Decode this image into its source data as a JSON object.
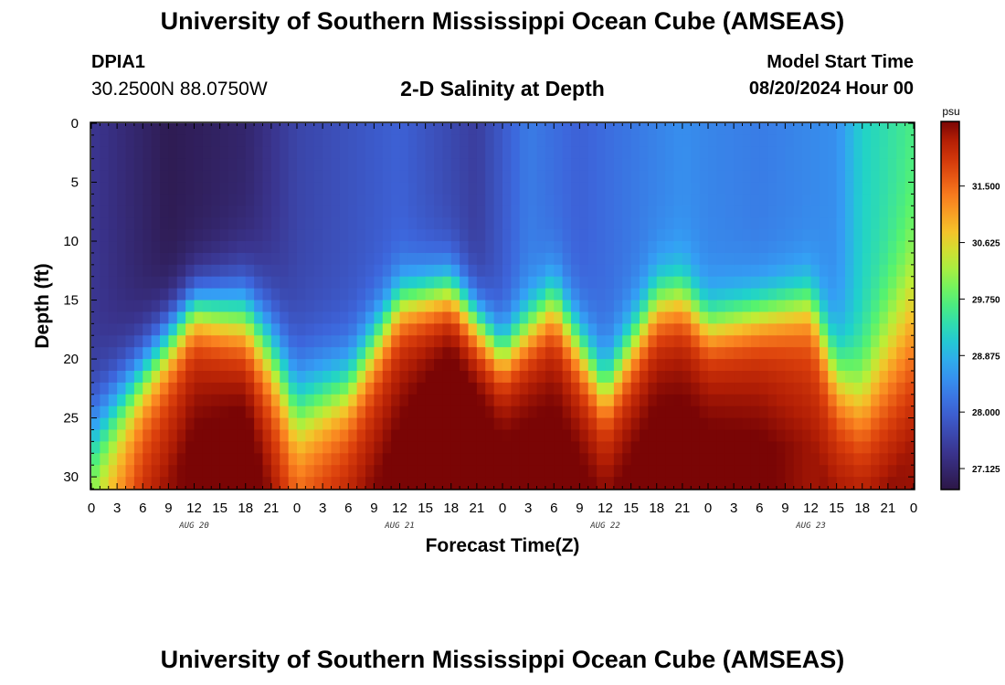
{
  "header": {
    "title": "University of Southern Mississippi Ocean Cube (AMSEAS)",
    "station_id": "DPIA1",
    "station_coords": "30.2500N  88.0750W",
    "subtitle": "2-D Salinity at Depth",
    "model_start_label": "Model Start Time",
    "model_start_value": "08/20/2024 Hour 00"
  },
  "footer": {
    "title": "University of Southern Mississippi Ocean Cube (AMSEAS)"
  },
  "chart_data": {
    "type": "heatmap",
    "title": "2-D Salinity at Depth",
    "xlabel": "Forecast Time(Z)",
    "ylabel": "Depth (ft)",
    "x_tick_labels": [
      "0",
      "3",
      "6",
      "9",
      "12",
      "15",
      "18",
      "21",
      "0",
      "3",
      "6",
      "9",
      "12",
      "15",
      "18",
      "21",
      "0",
      "3",
      "6",
      "9",
      "12",
      "15",
      "18",
      "21",
      "0",
      "3",
      "6",
      "9",
      "12",
      "15",
      "18",
      "21",
      "0"
    ],
    "date_labels": [
      {
        "label": "AUG 20",
        "hour": 12
      },
      {
        "label": "AUG 21",
        "hour": 36
      },
      {
        "label": "AUG 22",
        "hour": 60
      },
      {
        "label": "AUG 23",
        "hour": 84
      }
    ],
    "xlim_hours": [
      0,
      96
    ],
    "ylim_ft": [
      0,
      31
    ],
    "y_ticks": [
      0,
      5,
      10,
      15,
      20,
      25,
      30
    ],
    "y_tick_labels": [
      "0",
      "5",
      "10",
      "15",
      "20",
      "25",
      "30"
    ],
    "colorbar": {
      "unit": "psu",
      "min": 26.8,
      "max": 32.5,
      "ticks": [
        27.125,
        28.0,
        28.875,
        29.75,
        30.625,
        31.5
      ],
      "tick_labels": [
        "27.125",
        "28.000",
        "28.875",
        "29.750",
        "30.625",
        "31.500"
      ]
    },
    "surface_salinity_by_hour": [
      [
        0,
        27.4
      ],
      [
        9,
        26.9
      ],
      [
        18,
        27.1
      ],
      [
        24,
        27.6
      ],
      [
        36,
        28.0
      ],
      [
        45,
        27.5
      ],
      [
        51,
        28.3
      ],
      [
        57,
        28.0
      ],
      [
        69,
        28.5
      ],
      [
        72,
        28.4
      ],
      [
        78,
        28.3
      ],
      [
        87,
        28.5
      ],
      [
        90,
        29.2
      ],
      [
        96,
        29.6
      ]
    ],
    "bottom_salinity_by_hour": [
      [
        0,
        30.2
      ],
      [
        6,
        31.6
      ],
      [
        12,
        32.1
      ],
      [
        18,
        32.3
      ],
      [
        24,
        31.4
      ],
      [
        30,
        31.8
      ],
      [
        36,
        32.1
      ],
      [
        42,
        32.5
      ],
      [
        48,
        32.3
      ],
      [
        54,
        32.2
      ],
      [
        60,
        32.1
      ],
      [
        66,
        32.2
      ],
      [
        72,
        32.2
      ],
      [
        78,
        32.1
      ],
      [
        84,
        31.8
      ],
      [
        90,
        32.0
      ],
      [
        96,
        31.9
      ]
    ],
    "halocline_depth_ft_by_hour": [
      [
        0,
        26.0
      ],
      [
        6,
        21.0
      ],
      [
        12,
        15.5
      ],
      [
        18,
        16.0
      ],
      [
        21,
        19.0
      ],
      [
        24,
        23.5
      ],
      [
        30,
        22.0
      ],
      [
        36,
        15.0
      ],
      [
        42,
        14.0
      ],
      [
        48,
        19.5
      ],
      [
        54,
        15.0
      ],
      [
        60,
        22.5
      ],
      [
        66,
        15.0
      ],
      [
        69,
        14.5
      ],
      [
        72,
        17.0
      ],
      [
        78,
        16.0
      ],
      [
        84,
        15.0
      ],
      [
        87,
        21.0
      ],
      [
        90,
        23.0
      ],
      [
        96,
        15.0
      ]
    ],
    "halocline_thickness_ft_by_hour": [
      [
        0,
        9.0
      ],
      [
        12,
        6.0
      ],
      [
        24,
        10.0
      ],
      [
        36,
        6.0
      ],
      [
        48,
        6.0
      ],
      [
        60,
        7.0
      ],
      [
        72,
        6.0
      ],
      [
        84,
        6.0
      ],
      [
        90,
        10.0
      ],
      [
        96,
        16.0
      ]
    ]
  }
}
